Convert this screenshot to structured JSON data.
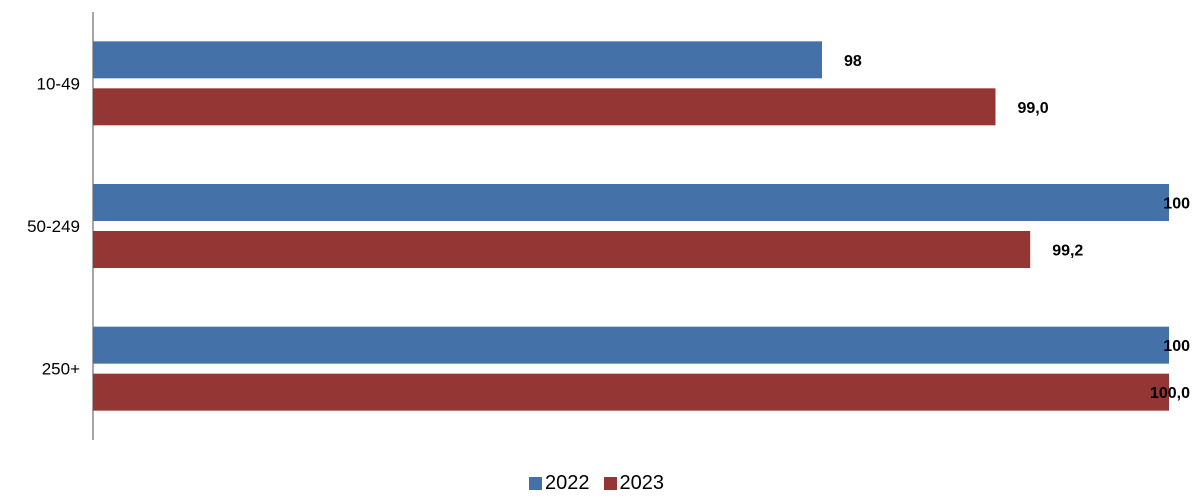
{
  "chart_data": {
    "type": "bar",
    "orientation": "horizontal",
    "categories": [
      "10-49",
      "50-249",
      "250+"
    ],
    "series": [
      {
        "name": "2022",
        "values": [
          98,
          100,
          100
        ],
        "labels": [
          "98",
          "100",
          "100"
        ],
        "color": "#4472A8"
      },
      {
        "name": "2023",
        "values": [
          99.0,
          99.2,
          100.0
        ],
        "labels": [
          "99,0",
          "99,2",
          "100,0"
        ],
        "color": "#943634"
      }
    ],
    "xlim": [
      0,
      100
    ],
    "grid": false,
    "legend_position": "bottom"
  }
}
